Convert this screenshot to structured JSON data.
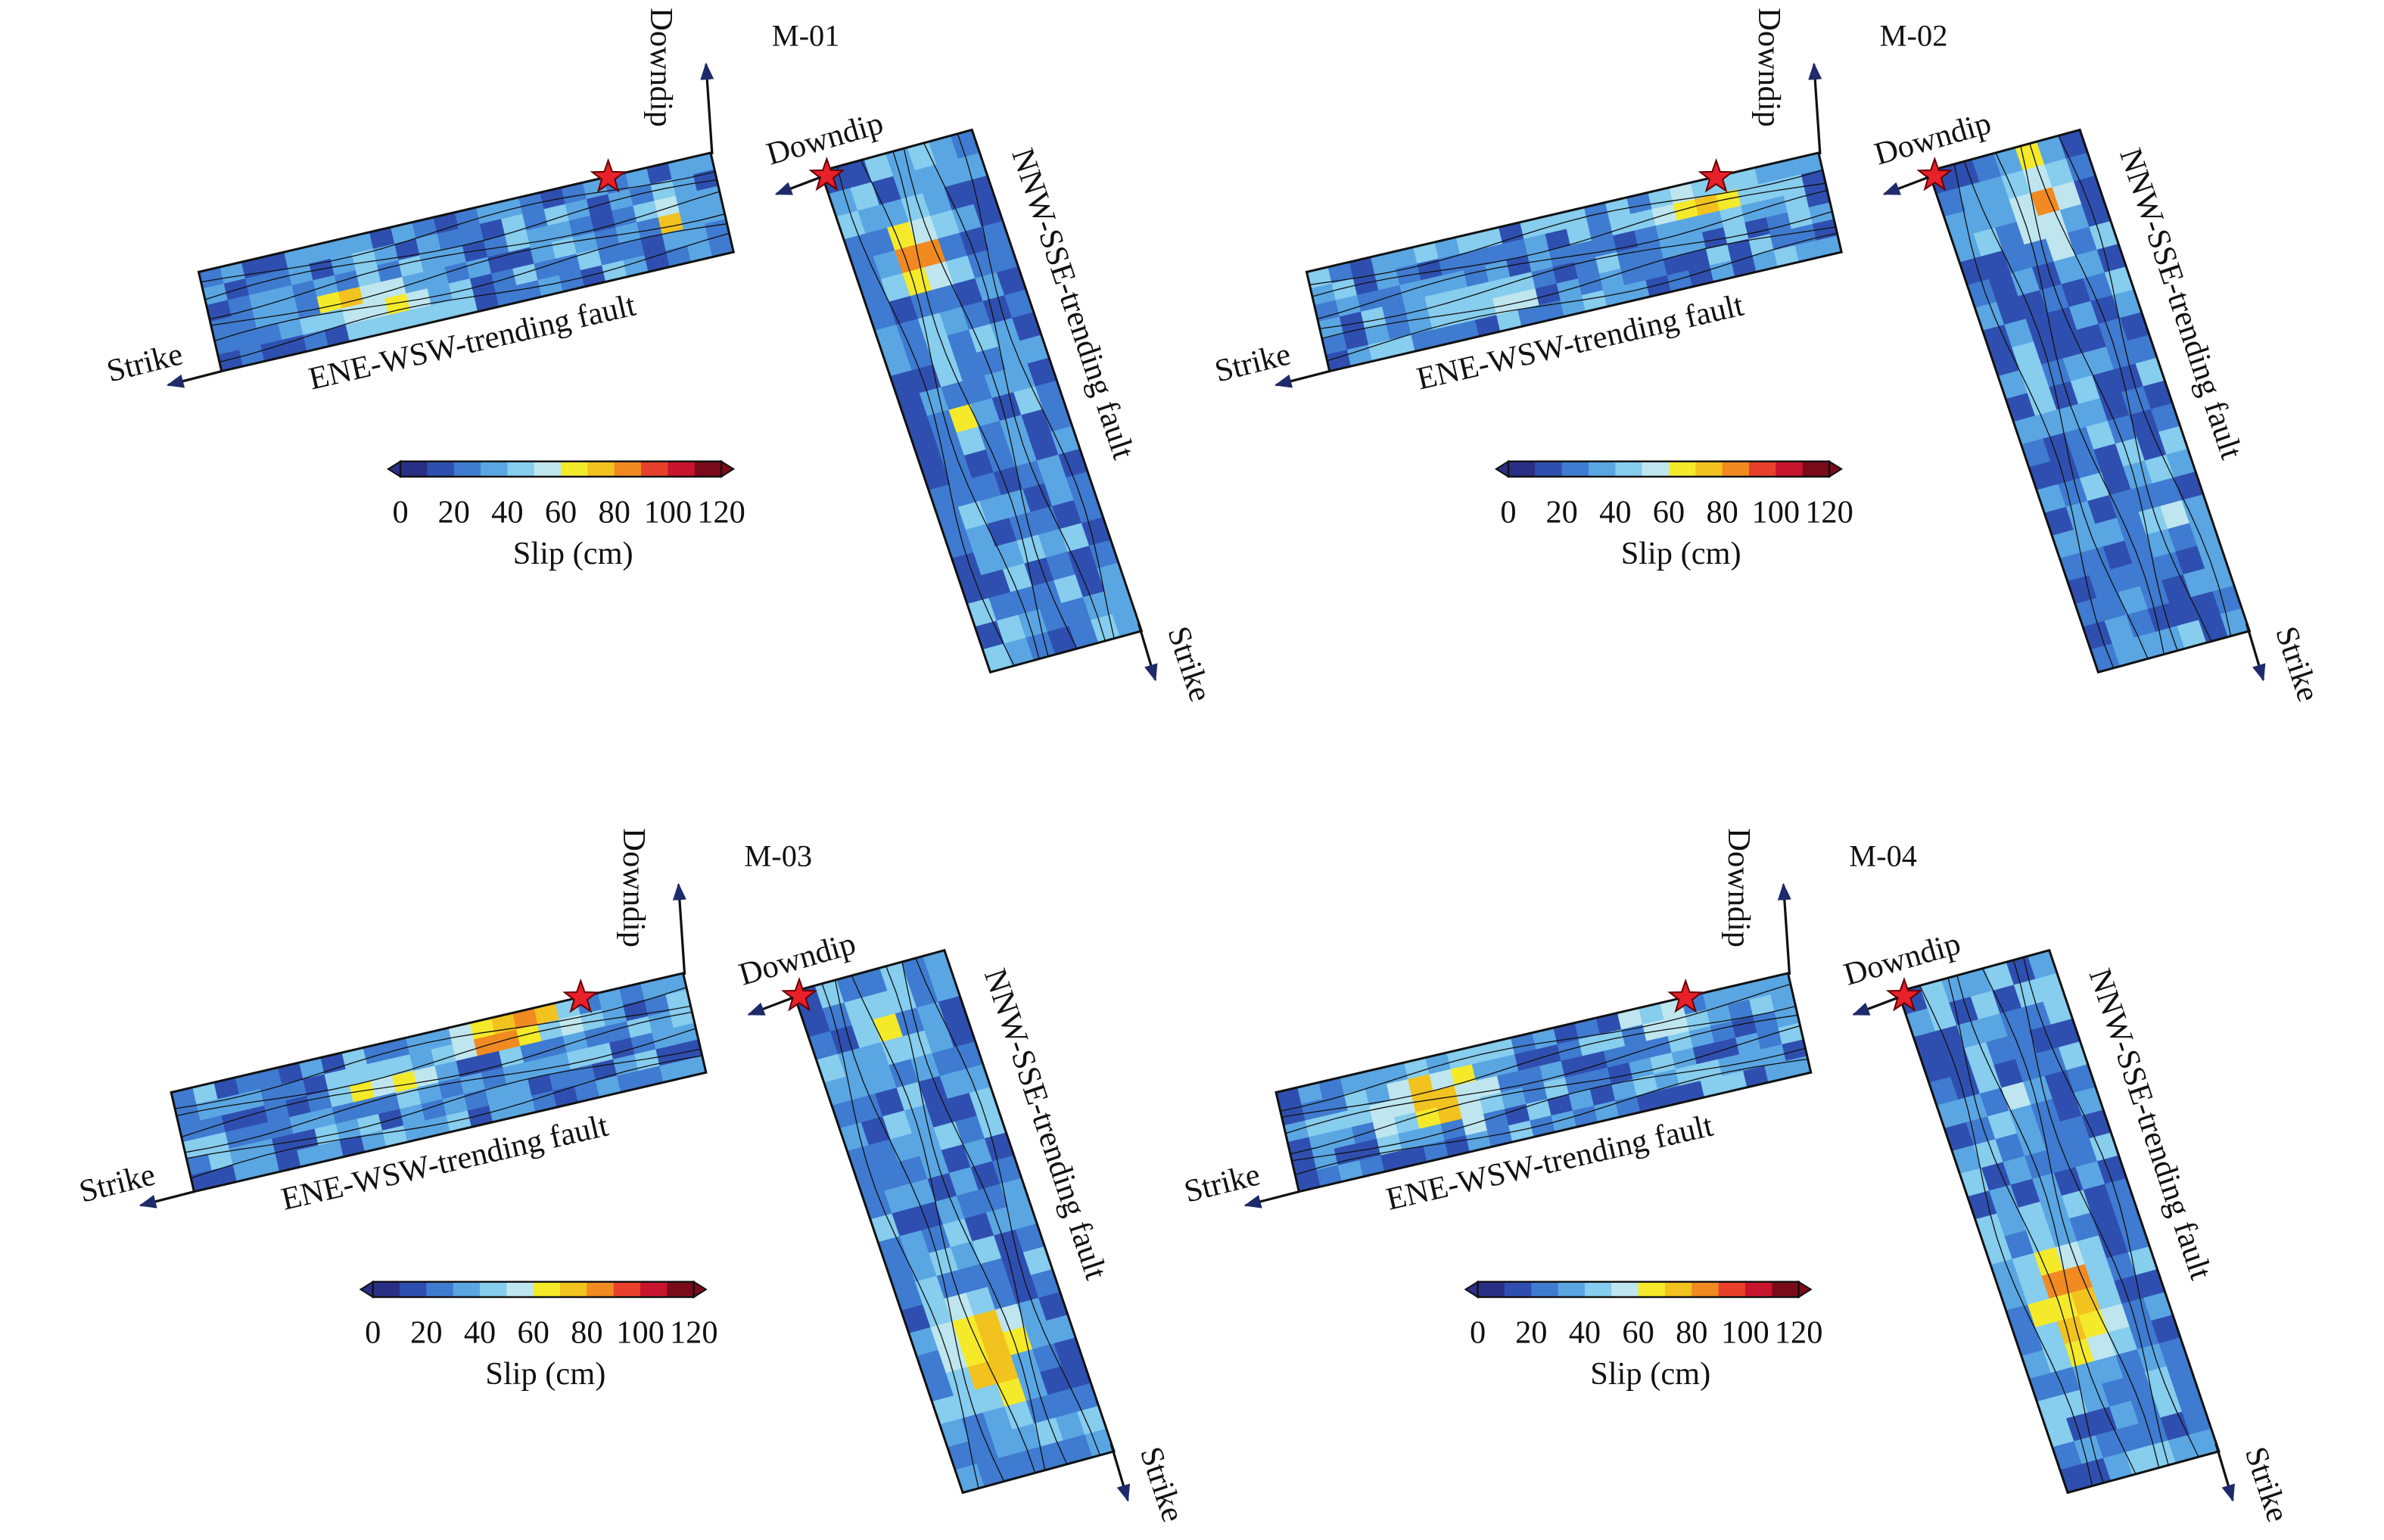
{
  "panels": [
    {
      "title": "M-01",
      "ene_fault": "ENE-WSW-trending fault",
      "nnw_fault": "NNW-SSE-trending fault",
      "downdip": "Downdip",
      "strike": "Strike"
    },
    {
      "title": "M-02",
      "ene_fault": "ENE-WSW-trending fault",
      "nnw_fault": "NNW-SSE-trending fault",
      "downdip": "Downdip",
      "strike": "Strike"
    },
    {
      "title": "M-03",
      "ene_fault": "ENE-WSW-trending fault",
      "nnw_fault": "NNW-SSE-trending fault",
      "downdip": "Downdip",
      "strike": "Strike"
    },
    {
      "title": "M-04",
      "ene_fault": "ENE-WSW-trending fault",
      "nnw_fault": "NNW-SSE-trending fault",
      "downdip": "Downdip",
      "strike": "Strike"
    }
  ],
  "colorbar": {
    "ticks": [
      "0",
      "20",
      "40",
      "60",
      "80",
      "100",
      "120"
    ],
    "label": "Slip (cm)",
    "range": [
      0,
      120
    ],
    "colors": [
      "#2a2f86",
      "#2f4fb0",
      "#3f7bd0",
      "#5aa6e3",
      "#86cdee",
      "#bfe6ee",
      "#f4ea2a",
      "#f2c21f",
      "#f08a21",
      "#e8402a",
      "#c8142c",
      "#7a0a1a"
    ]
  },
  "markers": {
    "hypocenter": "red-star",
    "hypocenter_color": "#e8202a"
  }
}
